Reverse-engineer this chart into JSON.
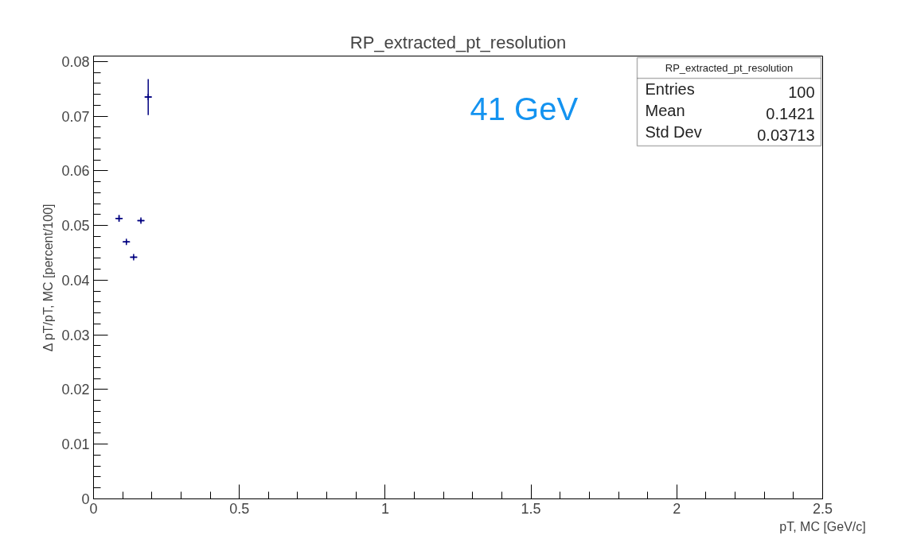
{
  "chart_data": {
    "type": "scatter",
    "title": "RP_extracted_pt_resolution",
    "xlabel": "pT, MC [GeV/c]",
    "ylabel": "Δ pT/pT, MC [percent/100]",
    "series": [
      {
        "color": "#000080",
        "x": [
          0.0875,
          0.1125,
          0.1375,
          0.1625,
          0.1875
        ],
        "values": [
          0.0513,
          0.047,
          0.0442,
          0.0509,
          0.0735
        ],
        "errors": [
          0.0006,
          0.0003,
          0.0002,
          0.0003,
          0.0033
        ],
        "xerrors": [
          0.0125,
          0.0125,
          0.0125,
          0.0125,
          0.0125
        ]
      }
    ],
    "marker": "cross",
    "xlim": [
      0,
      2.5
    ],
    "ylim": [
      0,
      0.081
    ],
    "xticks": [
      0,
      0.5,
      1,
      1.5,
      2,
      2.5
    ],
    "yticks": [
      0,
      0.01,
      0.02,
      0.03,
      0.04,
      0.05,
      0.06,
      0.07,
      0.08
    ],
    "grid": false,
    "annotations": [
      "41 GeV",
      "RP_extracted_pt_resolution",
      "Entries",
      "100",
      "Mean",
      "0.1421",
      "Std Dev",
      "0.03713"
    ]
  }
}
